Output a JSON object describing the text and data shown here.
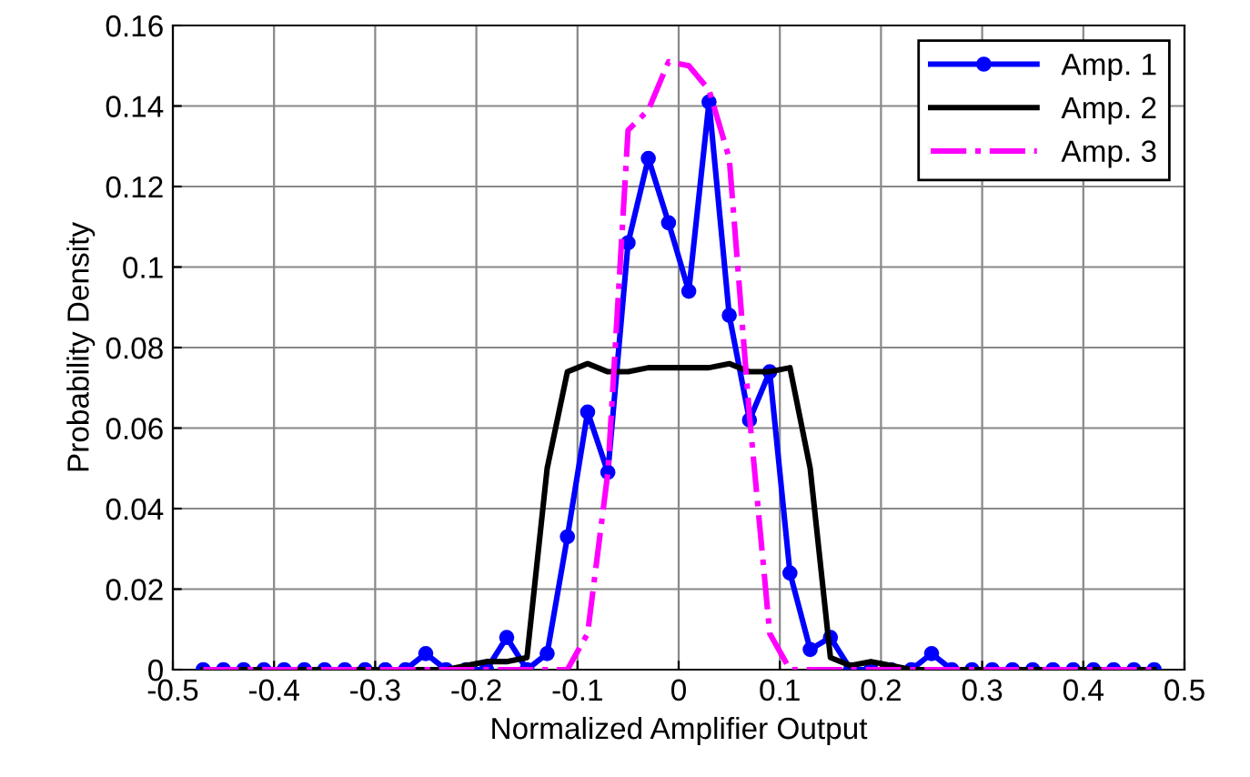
{
  "chart_data": {
    "type": "line",
    "xlabel": "Normalized Amplifier Output",
    "ylabel": "Probability Density",
    "x": [
      -0.47,
      -0.45,
      -0.43,
      -0.41,
      -0.39,
      -0.37,
      -0.35,
      -0.33,
      -0.31,
      -0.29,
      -0.27,
      -0.25,
      -0.23,
      -0.21,
      -0.19,
      -0.17,
      -0.15,
      -0.13,
      -0.11,
      -0.09,
      -0.07,
      -0.05,
      -0.03,
      -0.01,
      0.01,
      0.03,
      0.05,
      0.07,
      0.09,
      0.11,
      0.13,
      0.15,
      0.17,
      0.19,
      0.21,
      0.23,
      0.25,
      0.27,
      0.29,
      0.31,
      0.33,
      0.35,
      0.37,
      0.39,
      0.41,
      0.43,
      0.45,
      0.47
    ],
    "series": [
      {
        "name": "Amp. 1",
        "color": "#0000ff",
        "marker": "circle",
        "line_style": "solid",
        "values": [
          0,
          0,
          0,
          0,
          0,
          0,
          0,
          0,
          0,
          0,
          0,
          0.004,
          0,
          0,
          0,
          0.008,
          0,
          0.004,
          0.033,
          0.064,
          0.049,
          0.106,
          0.127,
          0.111,
          0.094,
          0.141,
          0.088,
          0.062,
          0.074,
          0.024,
          0.005,
          0.008,
          0,
          0,
          0,
          0,
          0.004,
          0,
          0,
          0,
          0,
          0,
          0,
          0,
          0,
          0,
          0,
          0
        ]
      },
      {
        "name": "Amp. 2",
        "color": "#000000",
        "marker": "none",
        "line_style": "solid",
        "values": [
          0,
          0,
          0,
          0,
          0,
          0,
          0,
          0,
          0,
          0,
          0,
          0,
          0,
          0.001,
          0.002,
          0.002,
          0.003,
          0.05,
          0.074,
          0.076,
          0.074,
          0.074,
          0.075,
          0.075,
          0.075,
          0.075,
          0.076,
          0.074,
          0.074,
          0.075,
          0.05,
          0.003,
          0.001,
          0.002,
          0.001,
          0,
          0,
          0,
          0,
          0,
          0,
          0,
          0,
          0,
          0,
          0,
          0,
          0
        ]
      },
      {
        "name": "Amp. 3",
        "color": "#ff00ff",
        "marker": "none",
        "line_style": "dashdot",
        "values": [
          0,
          0,
          0,
          0,
          0,
          0,
          0,
          0,
          0,
          0,
          0,
          0,
          0,
          0,
          0,
          0,
          0,
          0,
          0,
          0.009,
          0.049,
          0.134,
          0.139,
          0.151,
          0.15,
          0.144,
          0.127,
          0.063,
          0.009,
          0,
          0,
          0,
          0,
          0,
          0,
          0,
          0,
          0,
          0,
          0,
          0,
          0,
          0,
          0,
          0,
          0,
          0,
          0
        ]
      }
    ],
    "xlim": [
      -0.5,
      0.5
    ],
    "xticks": [
      -0.5,
      -0.4,
      -0.3,
      -0.2,
      -0.1,
      0,
      0.1,
      0.2,
      0.3,
      0.4,
      0.5
    ],
    "ylim": [
      0,
      0.16
    ],
    "yticks": [
      0,
      0.02,
      0.04,
      0.06,
      0.08,
      0.1,
      0.12,
      0.14,
      0.16
    ],
    "grid": true,
    "legend": "top right"
  }
}
